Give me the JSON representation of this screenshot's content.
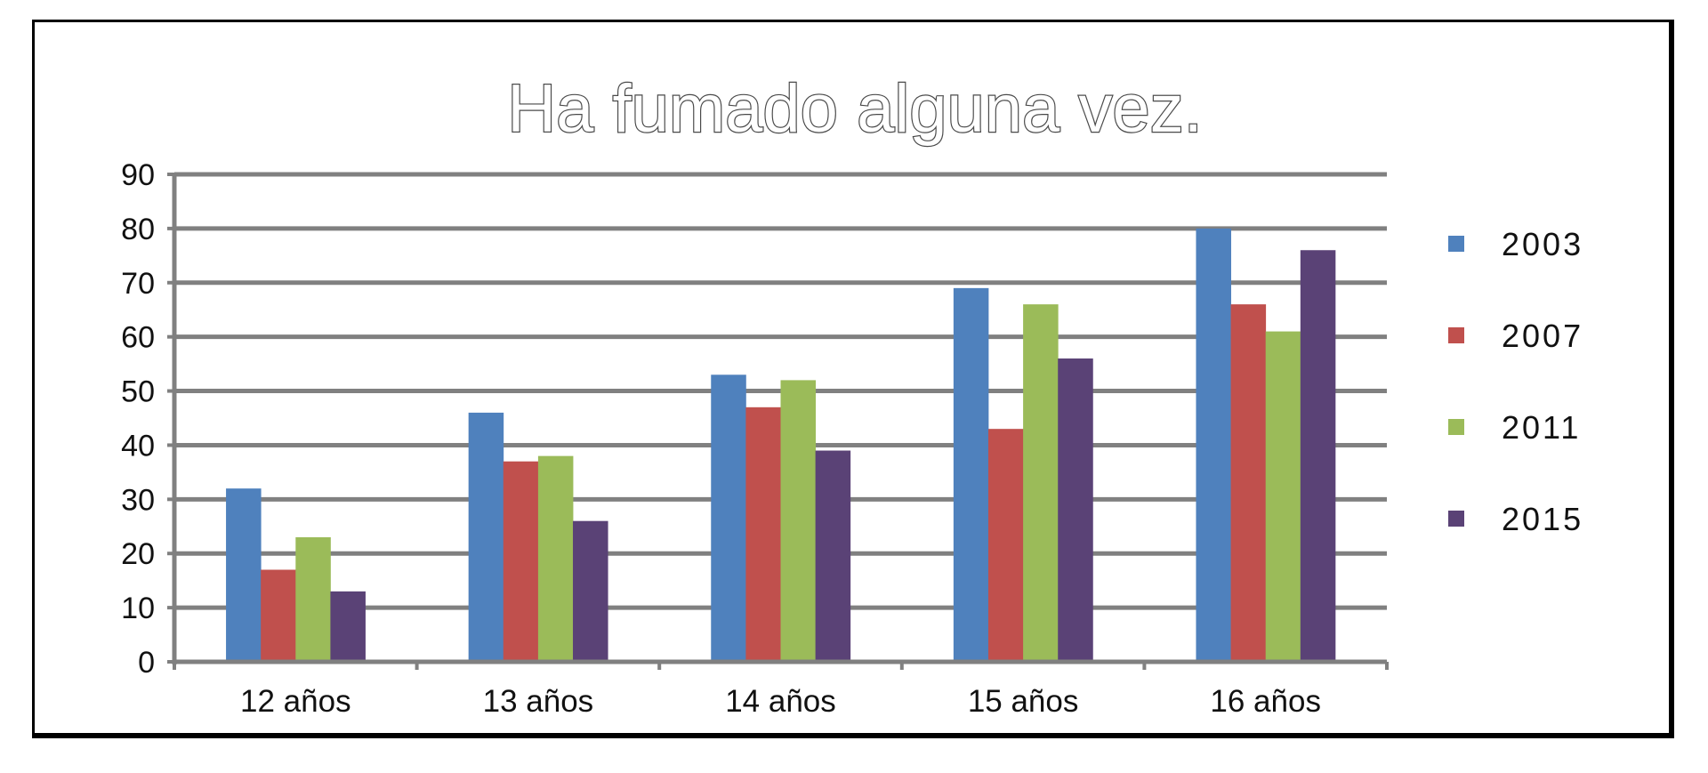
{
  "chart_data": {
    "type": "bar",
    "title": "Ha fumado alguna vez.",
    "xlabel": "",
    "ylabel": "",
    "categories": [
      "12 años",
      "13 años",
      "14 años",
      "15 años",
      "16 años"
    ],
    "series": [
      {
        "name": "2003",
        "color": "#4F81BD",
        "values": [
          32,
          46,
          53,
          69,
          80
        ]
      },
      {
        "name": "2007",
        "color": "#C0504D",
        "values": [
          17,
          37,
          47,
          43,
          66
        ]
      },
      {
        "name": "2011",
        "color": "#9BBB59",
        "values": [
          23,
          38,
          52,
          66,
          61
        ]
      },
      {
        "name": "2015",
        "color": "#5A4276",
        "values": [
          13,
          26,
          39,
          56,
          76
        ]
      }
    ],
    "ylim": [
      0,
      90
    ],
    "yticks": [
      0,
      10,
      20,
      30,
      40,
      50,
      60,
      70,
      80,
      90
    ],
    "grid": true,
    "legend": "right"
  }
}
